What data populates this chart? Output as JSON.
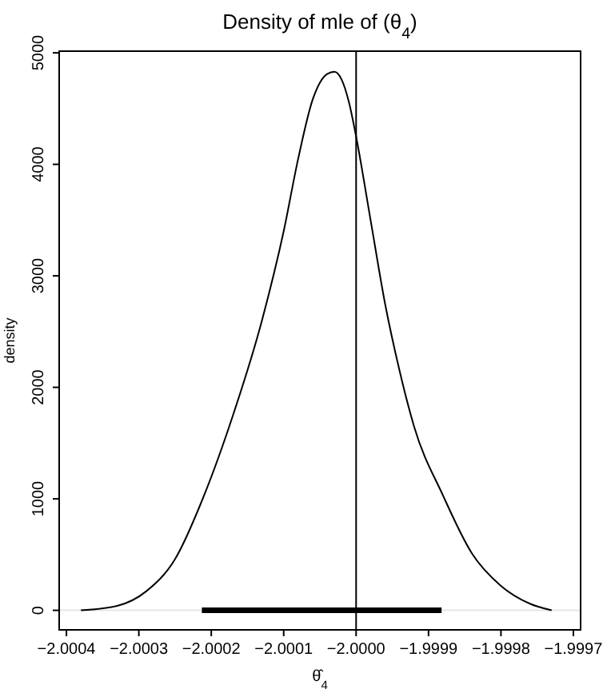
{
  "chart_data": {
    "type": "line",
    "title": "Density of mle of (θ$_{4}$)",
    "xlabel": "θ̂$_{4}$",
    "ylabel": "density",
    "xlim": [
      -2.00041,
      -1.99969
    ],
    "ylim": [
      -175,
      5015
    ],
    "xticks": [
      {
        "value": -2.0004,
        "label": "−2.0004"
      },
      {
        "value": -2.0003,
        "label": "−2.0003"
      },
      {
        "value": -2.0002,
        "label": "−2.0002"
      },
      {
        "value": -2.0001,
        "label": "−2.0001"
      },
      {
        "value": -2.0,
        "label": "−2.0000"
      },
      {
        "value": -1.9999,
        "label": "−1.9999"
      },
      {
        "value": -1.9998,
        "label": "−1.9998"
      },
      {
        "value": -1.9997,
        "label": "−1.9997"
      }
    ],
    "yticks": [
      0,
      1000,
      2000,
      3000,
      4000,
      5000
    ],
    "series": [
      {
        "color": "#000000",
        "x": [
          -2.00038,
          -2.00033,
          -2.00029,
          -2.00025,
          -2.00021,
          -2.00017,
          -2.00013,
          -2.0001,
          -2.00008,
          -2.00006,
          -2.00004,
          -2.00003,
          -2.00002,
          -2.00001,
          -2.0,
          -1.99998,
          -1.99996,
          -1.99994,
          -1.99992,
          -1.99988,
          -1.99984,
          -1.9998,
          -1.99976,
          -1.99973
        ],
        "values": [
          0,
          40,
          170,
          460,
          1030,
          1750,
          2600,
          3400,
          4050,
          4580,
          4810,
          4830,
          4760,
          4560,
          4250,
          3500,
          2750,
          2150,
          1650,
          1030,
          510,
          220,
          60,
          0
        ]
      },
      {
        "color": "#000000",
        "x": [
          -2.000213,
          -1.999882
        ],
        "values": [
          0,
          0
        ]
      }
    ],
    "ref_lines": [
      {
        "axis": "x",
        "value": -2.0,
        "color": "#000000"
      },
      {
        "axis": "y",
        "value": 0,
        "color": "#e6e6e6"
      }
    ],
    "grid": false,
    "marker": "none",
    "line_style": "solid"
  }
}
